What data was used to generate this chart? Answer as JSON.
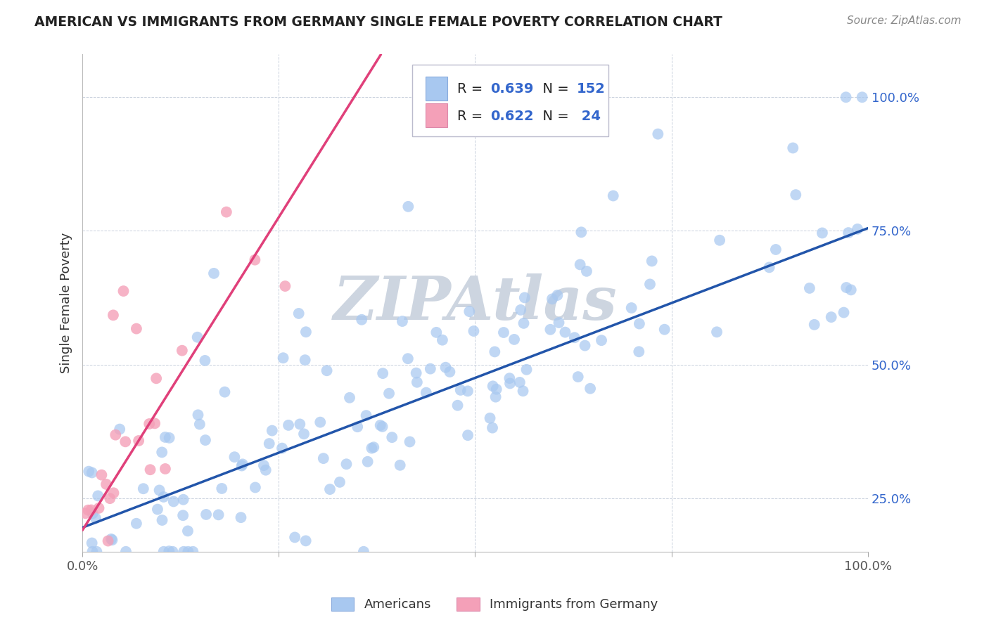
{
  "title": "AMERICAN VS IMMIGRANTS FROM GERMANY SINGLE FEMALE POVERTY CORRELATION CHART",
  "source": "Source: ZipAtlas.com",
  "ylabel": "Single Female Poverty",
  "bg_color": "#ffffff",
  "plot_bg_color": "#ffffff",
  "grid_color": "#c8d0dc",
  "americans": {
    "R": 0.639,
    "N": 152,
    "color": "#a8c8f0",
    "line_color": "#2255aa",
    "label": "Americans"
  },
  "germany": {
    "R": 0.622,
    "N": 24,
    "color": "#f4a0b8",
    "line_color": "#e0407a",
    "label": "Immigrants from Germany"
  },
  "watermark": "ZIPAtlas",
  "watermark_color": "#cdd5e0",
  "title_color": "#222222",
  "source_color": "#888888",
  "ylabel_color": "#333333",
  "tick_label_color_x": "#555555",
  "tick_label_color_y": "#3366cc",
  "legend_value_color": "#3366cc",
  "legend_label_color": "#222222",
  "ytick_labels": [
    "25.0%",
    "50.0%",
    "75.0%",
    "100.0%"
  ],
  "ytick_positions": [
    0.25,
    0.5,
    0.75,
    1.0
  ],
  "xmin": 0.0,
  "xmax": 1.0,
  "ymin": 0.15,
  "ymax": 1.08,
  "blue_line_x0": 0.0,
  "blue_line_y0": 0.195,
  "blue_line_x1": 1.0,
  "blue_line_y1": 0.755,
  "pink_line_x0": 0.0,
  "pink_line_y0": 0.19,
  "pink_line_x1": 0.38,
  "pink_line_y1": 1.08
}
